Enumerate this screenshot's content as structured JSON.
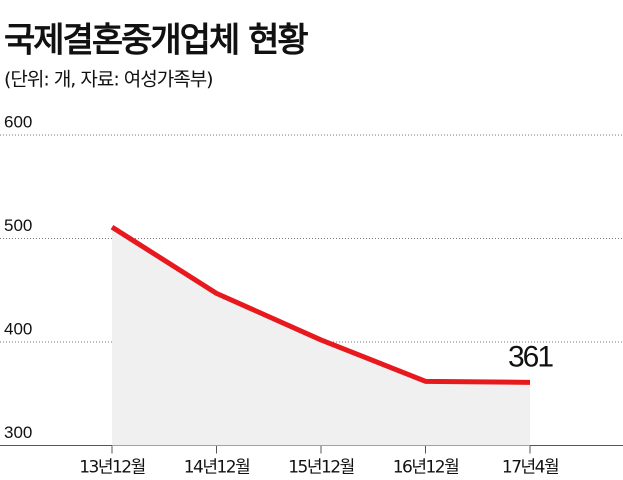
{
  "chart_data": {
    "type": "line",
    "title": "국제결혼중개업체 현황",
    "subtitle": "(단위: 개, 자료: 여성가족부)",
    "categories": [
      "13년12월",
      "14년12월",
      "15년12월",
      "16년12월",
      "17년4월"
    ],
    "values": [
      511,
      447,
      402,
      362,
      361
    ],
    "color": "#e8191e",
    "area_color": "#f0f0f0",
    "ylim": [
      300,
      600
    ],
    "yticks": [
      300,
      400,
      500,
      600
    ],
    "grid": true
  }
}
